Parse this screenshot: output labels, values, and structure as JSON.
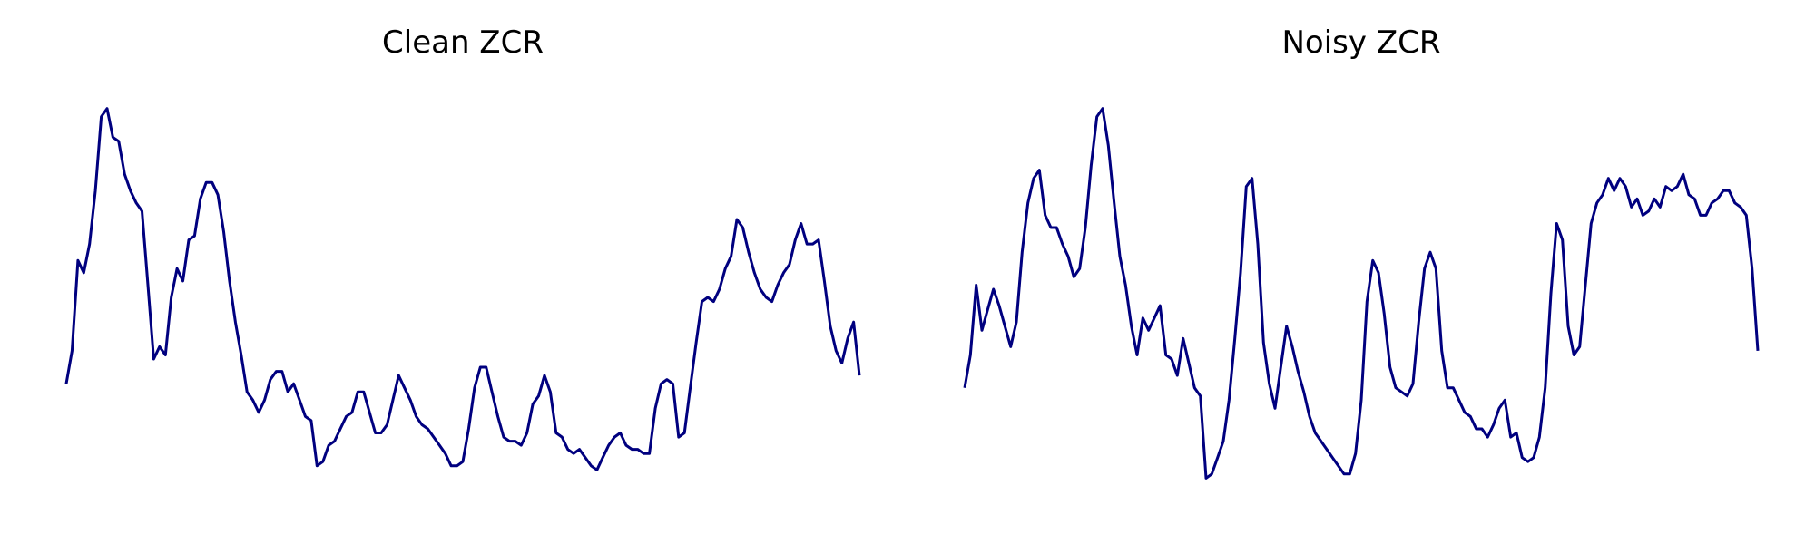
{
  "line_color": "#00007f",
  "chart_data": [
    {
      "type": "line",
      "title": "Clean ZCR",
      "xlabel": "",
      "ylabel": "",
      "grid": false,
      "axes_visible": false,
      "ylim": [
        0,
        1
      ],
      "series": [
        {
          "values": [
            0.28,
            0.36,
            0.58,
            0.55,
            0.62,
            0.75,
            0.93,
            0.95,
            0.88,
            0.87,
            0.79,
            0.75,
            0.72,
            0.7,
            0.52,
            0.34,
            0.37,
            0.35,
            0.49,
            0.56,
            0.53,
            0.63,
            0.64,
            0.73,
            0.77,
            0.77,
            0.74,
            0.65,
            0.53,
            0.43,
            0.35,
            0.26,
            0.24,
            0.21,
            0.24,
            0.29,
            0.31,
            0.31,
            0.26,
            0.28,
            0.24,
            0.2,
            0.19,
            0.08,
            0.09,
            0.13,
            0.14,
            0.17,
            0.2,
            0.21,
            0.26,
            0.26,
            0.21,
            0.16,
            0.16,
            0.18,
            0.24,
            0.3,
            0.27,
            0.24,
            0.2,
            0.18,
            0.17,
            0.15,
            0.13,
            0.11,
            0.08,
            0.08,
            0.09,
            0.17,
            0.27,
            0.32,
            0.32,
            0.26,
            0.2,
            0.15,
            0.14,
            0.14,
            0.13,
            0.16,
            0.23,
            0.25,
            0.3,
            0.26,
            0.16,
            0.15,
            0.12,
            0.11,
            0.12,
            0.1,
            0.08,
            0.07,
            0.1,
            0.13,
            0.15,
            0.16,
            0.13,
            0.12,
            0.12,
            0.11,
            0.11,
            0.22,
            0.28,
            0.29,
            0.28,
            0.15,
            0.16,
            0.27,
            0.38,
            0.48,
            0.49,
            0.48,
            0.51,
            0.56,
            0.59,
            0.68,
            0.66,
            0.6,
            0.55,
            0.51,
            0.49,
            0.48,
            0.52,
            0.55,
            0.57,
            0.63,
            0.67,
            0.62,
            0.62,
            0.63,
            0.53,
            0.42,
            0.36,
            0.33,
            0.39,
            0.43,
            0.3
          ]
        }
      ]
    },
    {
      "type": "line",
      "title": "Noisy ZCR",
      "xlabel": "",
      "ylabel": "",
      "grid": false,
      "axes_visible": false,
      "ylim": [
        0,
        1
      ],
      "series": [
        {
          "values": [
            0.27,
            0.35,
            0.52,
            0.41,
            0.46,
            0.51,
            0.47,
            0.42,
            0.37,
            0.43,
            0.6,
            0.72,
            0.78,
            0.8,
            0.69,
            0.66,
            0.66,
            0.62,
            0.59,
            0.54,
            0.56,
            0.66,
            0.81,
            0.93,
            0.95,
            0.86,
            0.72,
            0.59,
            0.52,
            0.42,
            0.35,
            0.44,
            0.41,
            0.44,
            0.47,
            0.35,
            0.34,
            0.3,
            0.39,
            0.33,
            0.27,
            0.25,
            0.05,
            0.06,
            0.1,
            0.14,
            0.24,
            0.39,
            0.55,
            0.76,
            0.78,
            0.62,
            0.38,
            0.28,
            0.22,
            0.32,
            0.42,
            0.37,
            0.31,
            0.26,
            0.2,
            0.16,
            0.14,
            0.12,
            0.1,
            0.08,
            0.06,
            0.06,
            0.11,
            0.24,
            0.48,
            0.58,
            0.55,
            0.45,
            0.32,
            0.27,
            0.26,
            0.25,
            0.28,
            0.43,
            0.56,
            0.6,
            0.56,
            0.36,
            0.27,
            0.27,
            0.24,
            0.21,
            0.2,
            0.17,
            0.17,
            0.15,
            0.18,
            0.22,
            0.24,
            0.15,
            0.16,
            0.1,
            0.09,
            0.1,
            0.15,
            0.27,
            0.5,
            0.67,
            0.63,
            0.42,
            0.35,
            0.37,
            0.52,
            0.67,
            0.72,
            0.74,
            0.78,
            0.75,
            0.78,
            0.76,
            0.71,
            0.73,
            0.69,
            0.7,
            0.73,
            0.71,
            0.76,
            0.75,
            0.76,
            0.79,
            0.74,
            0.73,
            0.69,
            0.69,
            0.72,
            0.73,
            0.75,
            0.75,
            0.72,
            0.71,
            0.69,
            0.56,
            0.36
          ]
        }
      ]
    }
  ]
}
